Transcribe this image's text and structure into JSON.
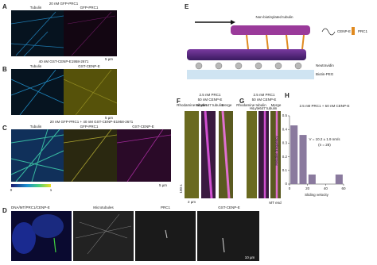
{
  "panels": {
    "a": {
      "label": "A",
      "title": "20 nM GFP-PRC1",
      "channels": [
        "Tubulin",
        "GFP-PRC1"
      ],
      "scale_bar": "5 µm"
    },
    "b": {
      "label": "B",
      "title": "40 nM GST-CENP-E1958-2671",
      "channels": [
        "Tubulin",
        "GST-CENP-E"
      ],
      "scale_bar": "5 µm"
    },
    "c": {
      "label": "C",
      "title": "20 nM GFP-PRC1 + 40 nM GST-CENP-E1958-2671",
      "channels": [
        "Tubulin",
        "GFP-PRC1",
        "GST-CENP-E"
      ],
      "scale_bar": "5 µm",
      "colorbar": [
        "0",
        "1"
      ]
    },
    "d": {
      "label": "D",
      "channels": [
        "DNA/MT/PRC1/CENP-E",
        "Microtubules",
        "PRC1",
        "GST-CENP-E"
      ],
      "scale_bar": "10 µm"
    },
    "e": {
      "label": "E",
      "labels": [
        "Non-biotinylated tubulin",
        "CENP-E",
        "PRC1",
        "Neutravidin",
        "Biotin-PEG"
      ]
    },
    "f": {
      "label": "F",
      "title": [
        "2.5 nM PRC1",
        "50 nM CENP-E"
      ],
      "channels": [
        "Rhodamine tubulin",
        "HiLyte647 tubulin",
        "Merge"
      ],
      "time_bar": "100 s",
      "scale_bar": "2 µm"
    },
    "g": {
      "label": "G",
      "title": [
        "2.5 nM PRC1",
        "50 nM CENP-E"
      ],
      "channels": [
        "Rhodamine tubulin",
        "HiLyte647 tubulin",
        "Merge"
      ],
      "end_label": "MT end"
    }
  },
  "chart_data": {
    "type": "histogram",
    "panel_label": "H",
    "title": "2.5 nM PRC1 + 50 nM CENP-E",
    "annotation": [
      "V = 10.2 ± 1.9 nm/s",
      "(n = 28)"
    ],
    "x_label": "Sliding velocity",
    "y_label": "Relative frequency",
    "bins": [
      0,
      10,
      20,
      30,
      40,
      50,
      60
    ],
    "values": [
      0.43,
      0.36,
      0.07,
      0,
      0,
      0.07
    ],
    "color": "#8a7a9e",
    "xlim": [
      0,
      60
    ],
    "ylim": [
      0,
      0.5
    ],
    "xticks": [
      0,
      20,
      40,
      60
    ],
    "yticks": [
      0,
      0.1,
      0.2,
      0.3,
      0.4,
      0.5
    ]
  }
}
